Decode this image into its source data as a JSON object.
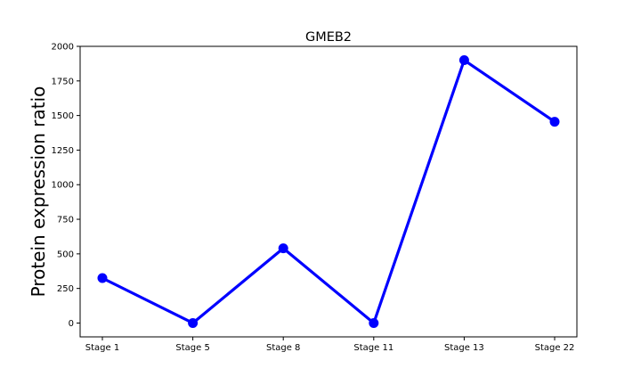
{
  "chart_data": {
    "type": "line",
    "title": "GMEB2",
    "xlabel": "",
    "ylabel": "Protein expression ratio",
    "categories": [
      "Stage 1",
      "Stage 5",
      "Stage 8",
      "Stage 11",
      "Stage 13",
      "Stage 22"
    ],
    "series": [
      {
        "values": [
          325,
          0,
          540,
          0,
          1900,
          1455
        ],
        "color": "#0000ff",
        "marker": "circle"
      }
    ],
    "ylim": [
      -100,
      2000
    ],
    "yticks": [
      0,
      250,
      500,
      750,
      1000,
      1250,
      1500,
      1750,
      2000
    ],
    "grid": false,
    "legend": "none"
  }
}
